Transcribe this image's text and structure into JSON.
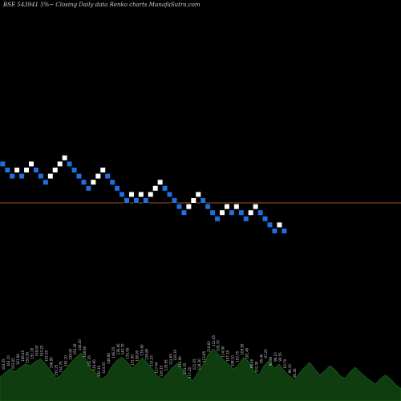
{
  "chart_data": {
    "type": "renko",
    "title": "BSE 543941 5%~ Closing Daily data Renko charts MunafaSutra.com",
    "colors": {
      "background": "#000000",
      "up": "#ffffff",
      "down": "#1f6fe0",
      "reference_line": "#a0521c",
      "volume_fill": "#0f3d0f",
      "volume_label": "#d0d0d0"
    },
    "grid": false,
    "bricks": [
      {
        "i": 0,
        "level": 6,
        "dir": "down"
      },
      {
        "i": 1,
        "level": 5,
        "dir": "down"
      },
      {
        "i": 2,
        "level": 4,
        "dir": "down"
      },
      {
        "i": 3,
        "level": 5,
        "dir": "up"
      },
      {
        "i": 4,
        "level": 4,
        "dir": "down"
      },
      {
        "i": 5,
        "level": 5,
        "dir": "up"
      },
      {
        "i": 6,
        "level": 6,
        "dir": "up"
      },
      {
        "i": 7,
        "level": 5,
        "dir": "down"
      },
      {
        "i": 8,
        "level": 4,
        "dir": "down"
      },
      {
        "i": 9,
        "level": 3,
        "dir": "down"
      },
      {
        "i": 10,
        "level": 4,
        "dir": "up"
      },
      {
        "i": 11,
        "level": 5,
        "dir": "up"
      },
      {
        "i": 12,
        "level": 6,
        "dir": "up"
      },
      {
        "i": 13,
        "level": 7,
        "dir": "up"
      },
      {
        "i": 14,
        "level": 6,
        "dir": "down"
      },
      {
        "i": 15,
        "level": 5,
        "dir": "down"
      },
      {
        "i": 16,
        "level": 4,
        "dir": "down"
      },
      {
        "i": 17,
        "level": 3,
        "dir": "down"
      },
      {
        "i": 18,
        "level": 2,
        "dir": "down"
      },
      {
        "i": 19,
        "level": 3,
        "dir": "up"
      },
      {
        "i": 20,
        "level": 4,
        "dir": "up"
      },
      {
        "i": 21,
        "level": 5,
        "dir": "up"
      },
      {
        "i": 22,
        "level": 4,
        "dir": "down"
      },
      {
        "i": 23,
        "level": 3,
        "dir": "down"
      },
      {
        "i": 24,
        "level": 2,
        "dir": "down"
      },
      {
        "i": 25,
        "level": 1,
        "dir": "down"
      },
      {
        "i": 26,
        "level": 0,
        "dir": "down"
      },
      {
        "i": 27,
        "level": 1,
        "dir": "up"
      },
      {
        "i": 28,
        "level": 0,
        "dir": "down"
      },
      {
        "i": 29,
        "level": 1,
        "dir": "up"
      },
      {
        "i": 30,
        "level": 0,
        "dir": "down"
      },
      {
        "i": 31,
        "level": 1,
        "dir": "up"
      },
      {
        "i": 32,
        "level": 2,
        "dir": "up"
      },
      {
        "i": 33,
        "level": 3,
        "dir": "up"
      },
      {
        "i": 34,
        "level": 2,
        "dir": "down"
      },
      {
        "i": 35,
        "level": 1,
        "dir": "down"
      },
      {
        "i": 36,
        "level": 0,
        "dir": "down"
      },
      {
        "i": 37,
        "level": -1,
        "dir": "down"
      },
      {
        "i": 38,
        "level": -2,
        "dir": "down"
      },
      {
        "i": 39,
        "level": -1,
        "dir": "up"
      },
      {
        "i": 40,
        "level": 0,
        "dir": "up"
      },
      {
        "i": 41,
        "level": 1,
        "dir": "up"
      },
      {
        "i": 42,
        "level": 0,
        "dir": "down"
      },
      {
        "i": 43,
        "level": -1,
        "dir": "down"
      },
      {
        "i": 44,
        "level": -2,
        "dir": "down"
      },
      {
        "i": 45,
        "level": -3,
        "dir": "down"
      },
      {
        "i": 46,
        "level": -2,
        "dir": "up"
      },
      {
        "i": 47,
        "level": -1,
        "dir": "up"
      },
      {
        "i": 48,
        "level": -2,
        "dir": "down"
      },
      {
        "i": 49,
        "level": -1,
        "dir": "up"
      },
      {
        "i": 50,
        "level": -2,
        "dir": "down"
      },
      {
        "i": 51,
        "level": -3,
        "dir": "down"
      },
      {
        "i": 52,
        "level": -2,
        "dir": "up"
      },
      {
        "i": 53,
        "level": -1,
        "dir": "up"
      },
      {
        "i": 54,
        "level": -2,
        "dir": "down"
      },
      {
        "i": 55,
        "level": -3,
        "dir": "down"
      },
      {
        "i": 56,
        "level": -4,
        "dir": "down"
      },
      {
        "i": 57,
        "level": -5,
        "dir": "down"
      },
      {
        "i": 58,
        "level": -4,
        "dir": "up"
      },
      {
        "i": 59,
        "level": -5,
        "dir": "down"
      }
    ],
    "reference_level": 0,
    "volume": [
      28,
      34,
      38,
      35,
      40,
      44,
      42,
      47,
      50,
      44,
      36,
      27,
      31,
      38,
      46,
      52,
      57,
      49,
      38,
      33,
      26,
      30,
      41,
      48,
      52,
      47,
      39,
      44,
      51,
      46,
      38,
      30,
      26,
      33,
      40,
      45,
      37,
      29,
      24,
      34,
      43,
      55,
      62,
      56,
      49,
      44,
      38,
      43,
      52,
      47,
      36,
      31,
      42,
      48,
      39,
      44,
      36,
      30,
      25,
      33,
      40,
      46,
      38,
      31,
      36,
      42,
      37,
      30,
      27,
      35,
      40,
      34,
      29,
      24,
      20,
      27,
      31,
      26,
      19,
      15
    ],
    "volume_labels": [
      "163.35",
      "162.10",
      "152.05",
      "161.90",
      "156.45",
      "153.30",
      "151.20",
      "159.00",
      "163.25",
      "151.05",
      "148.90",
      "152.25",
      "150.75",
      "162.10",
      "159.95",
      "153.45",
      "144.20",
      "148.60",
      "151.35",
      "143.90",
      "140.10",
      "143.55",
      "149.80",
      "146.25",
      "136.40",
      "142.70",
      "135.05",
      "131.95",
      "138.00",
      "135.60",
      "129.80",
      "133.25",
      "127.40",
      "126.15",
      "129.95",
      "122.65",
      "126.30",
      "119.90",
      "124.55",
      "117.20",
      "121.05",
      "118.30",
      "113.85",
      "116.60",
      "112.45",
      "109.70",
      "114.90",
      "107.35",
      "108.10",
      "103.75",
      "105.95",
      "101.40",
      "98.60",
      "102.30",
      "95.40",
      "97.25",
      "92.80",
      "96.10",
      "90.55",
      "93.70",
      "89.10",
      "85.45"
    ]
  }
}
